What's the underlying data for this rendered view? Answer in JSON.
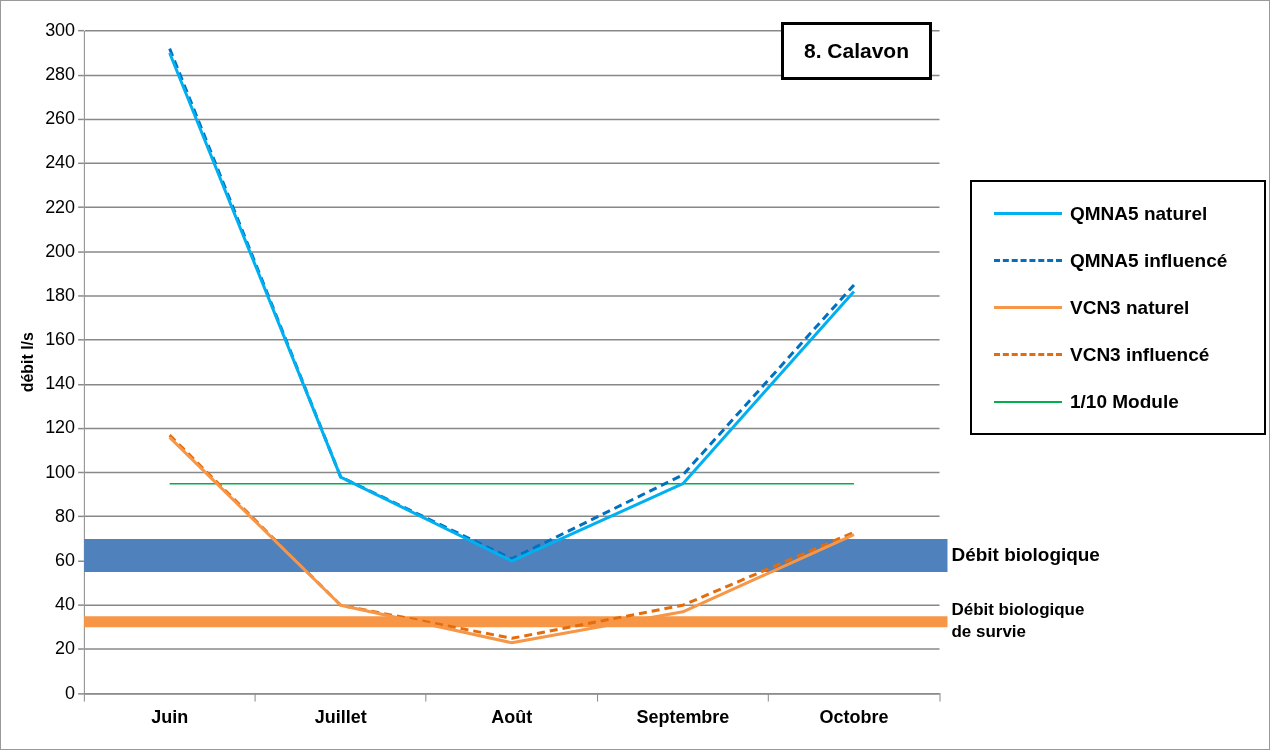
{
  "chart_data": {
    "type": "line",
    "title": "8. Calavon",
    "ylabel": "débit l/s",
    "categories": [
      "Juin",
      "Juillet",
      "Août",
      "Septembre",
      "Octobre"
    ],
    "series": [
      {
        "name": "QMNA5 naturel",
        "color": "#00b0f0",
        "values": [
          290,
          98,
          60,
          95,
          182
        ]
      },
      {
        "name": "QMNA5 influencé",
        "color": "#0070c0",
        "line_style": "dashed",
        "values": [
          292,
          98,
          61,
          99,
          185
        ]
      },
      {
        "name": "VCN3 naturel",
        "color": "#f79646",
        "values": [
          116,
          40,
          23,
          37,
          72
        ]
      },
      {
        "name": "VCN3 influencé",
        "color": "#e46c0a",
        "line_style": "dashed",
        "values": [
          117,
          40,
          25,
          40,
          73
        ]
      },
      {
        "name": "1/10 Module",
        "color": "#00b050",
        "values": [
          95,
          95,
          95,
          95,
          95
        ]
      }
    ],
    "bands": [
      {
        "axis": "y",
        "from": 55,
        "to": 70,
        "label": "Débit biologique",
        "color": "#4f81bd"
      },
      {
        "axis": "y",
        "from": 30,
        "to": 35,
        "label": "Débit biologique\nde survie",
        "color": "#f79646"
      }
    ],
    "ylim": [
      0,
      300
    ],
    "yticks": [
      0,
      20,
      40,
      60,
      80,
      100,
      120,
      140,
      160,
      180,
      200,
      220,
      240,
      260,
      280,
      300
    ],
    "grid": "y",
    "legend": "right"
  }
}
